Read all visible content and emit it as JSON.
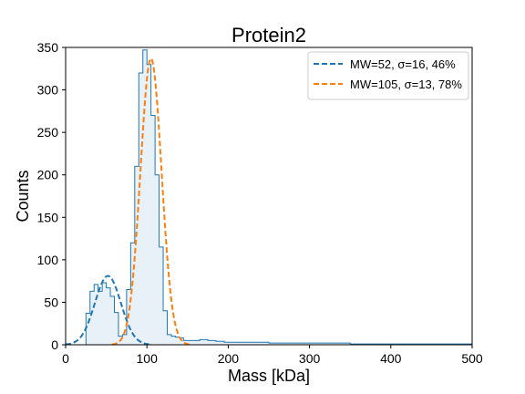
{
  "chart_data": {
    "type": "histogram",
    "title": "Protein2",
    "xlabel": "Mass [kDa]",
    "ylabel": "Counts",
    "xlim": [
      0,
      500
    ],
    "ylim": [
      0,
      350
    ],
    "xticks": [
      0,
      100,
      200,
      300,
      400,
      500
    ],
    "yticks": [
      0,
      50,
      100,
      150,
      200,
      250,
      300,
      350
    ],
    "grid": false,
    "legend_position": "top-right",
    "colors": {
      "histogram_edge": "#1f77b4",
      "histogram_fill": "#e8f0f8",
      "series1": "#1f77b4",
      "series2": "#ff7f0e"
    },
    "histogram": {
      "bin_width": 5,
      "bin_start": 25,
      "counts": [
        37,
        63,
        71,
        63,
        73,
        67,
        57,
        38,
        10,
        12,
        65,
        120,
        210,
        320,
        347,
        330,
        270,
        200,
        115,
        40,
        12,
        10,
        9,
        8,
        5,
        5,
        5,
        5,
        6,
        6,
        5,
        5,
        4,
        4,
        3,
        3,
        3,
        3,
        3,
        3,
        3,
        3,
        3,
        3,
        3,
        2,
        2,
        2,
        2,
        2,
        2,
        2,
        2,
        2,
        2,
        2,
        2,
        2,
        2,
        2,
        2,
        2,
        2,
        2,
        2,
        1,
        1,
        1,
        1,
        1,
        1,
        1,
        1,
        1,
        1,
        1,
        1,
        1,
        1,
        1,
        1,
        1,
        1,
        1,
        1,
        1,
        1,
        1,
        1,
        1,
        1,
        1,
        1,
        1,
        1
      ]
    },
    "series": [
      {
        "name": "MW=52, σ=16, 46%",
        "type": "gaussian_fit",
        "mean": 52,
        "sigma": 16,
        "amplitude": 81,
        "style": "dashed"
      },
      {
        "name": "MW=105, σ=13, 78%",
        "type": "gaussian_fit",
        "mean": 105,
        "sigma": 13,
        "amplitude": 337,
        "style": "dashed"
      }
    ]
  }
}
